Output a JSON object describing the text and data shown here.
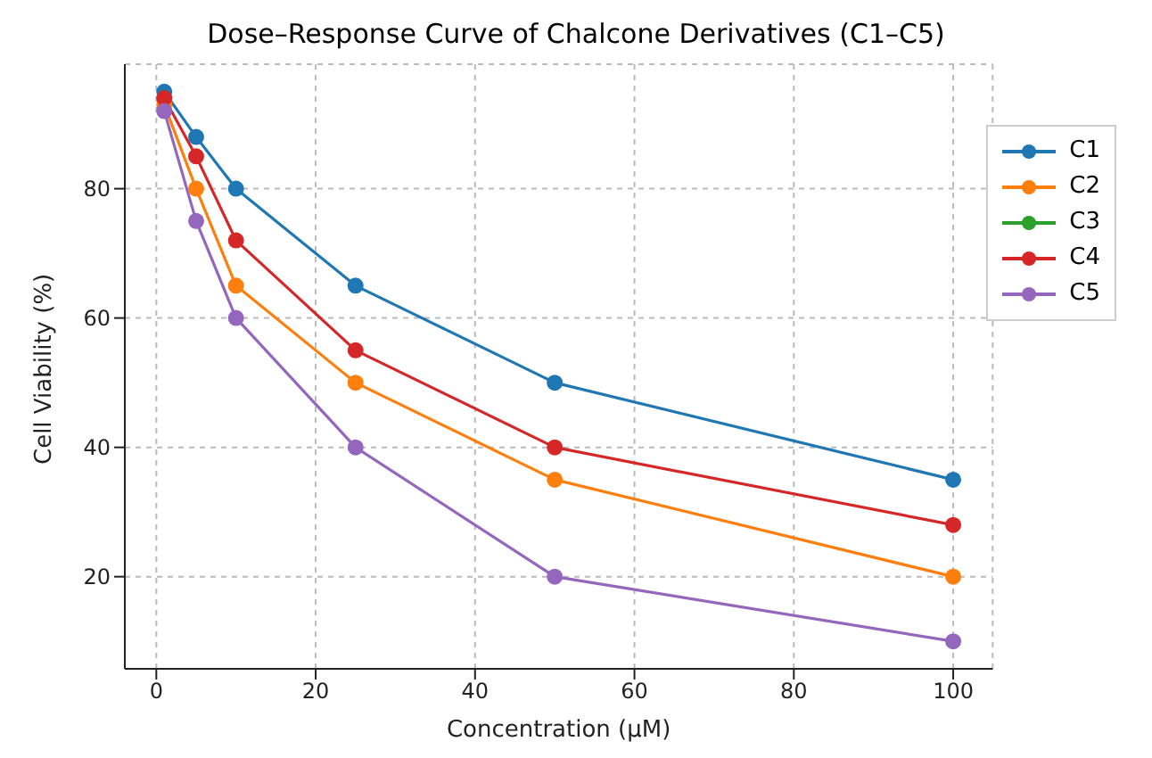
{
  "chart_data": {
    "type": "line",
    "title": "Dose–Response Curve of Chalcone Derivatives (C1–C5)",
    "xlabel": "Concentration (µM)",
    "ylabel": "Cell Viability (%)",
    "x": [
      1,
      5,
      10,
      25,
      50,
      100
    ],
    "series": [
      {
        "name": "C1",
        "color": "#1f77b4",
        "values": [
          95,
          88,
          80,
          65,
          50,
          35
        ]
      },
      {
        "name": "C2",
        "color": "#ff7f0e",
        "values": [
          93,
          80,
          65,
          50,
          35,
          20
        ]
      },
      {
        "name": "C3",
        "color": "#2ca02c",
        "values": [
          null,
          null,
          null,
          null,
          null,
          null
        ]
      },
      {
        "name": "C4",
        "color": "#d62728",
        "values": [
          94,
          85,
          72,
          55,
          40,
          28
        ]
      },
      {
        "name": "C5",
        "color": "#9467bd",
        "values": [
          92,
          75,
          60,
          40,
          20,
          10
        ]
      }
    ],
    "xlim": [
      -3.95,
      104.95
    ],
    "ylim": [
      5.75,
      99.25
    ],
    "xticks": [
      0,
      20,
      40,
      60,
      80,
      100
    ],
    "yticks": [
      20,
      40,
      60,
      80
    ],
    "grid": true,
    "legend": "top right",
    "marker": "circle",
    "line_style": "solid"
  }
}
